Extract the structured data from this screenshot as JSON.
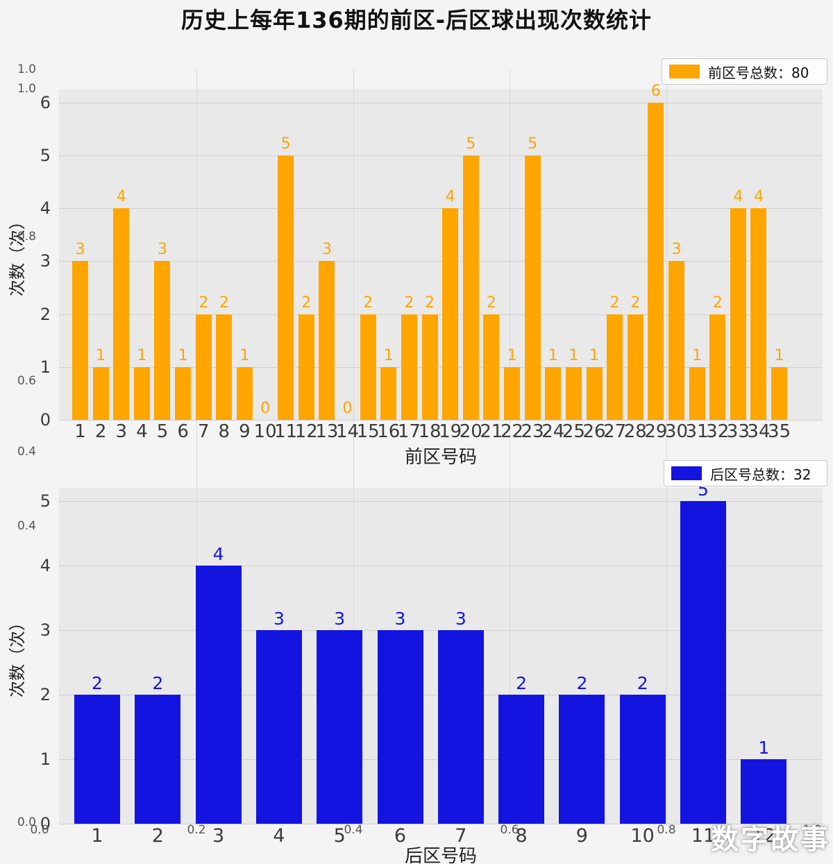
{
  "title": "历史上每年136期的前区-后区球出现次数统计",
  "watermark": "数字故事",
  "chart_data": [
    {
      "type": "bar",
      "name": "front-zone-counts",
      "legend": "前区号总数：80",
      "bar_color": "#FFA500",
      "categories": [
        1,
        2,
        3,
        4,
        5,
        6,
        7,
        8,
        9,
        10,
        11,
        12,
        13,
        14,
        15,
        16,
        17,
        18,
        19,
        20,
        21,
        22,
        23,
        24,
        25,
        26,
        27,
        28,
        29,
        30,
        31,
        32,
        33,
        34,
        35
      ],
      "values": [
        3,
        1,
        4,
        1,
        3,
        1,
        2,
        2,
        1,
        0,
        5,
        2,
        3,
        0,
        2,
        1,
        2,
        2,
        4,
        5,
        2,
        1,
        5,
        1,
        1,
        1,
        2,
        2,
        6,
        3,
        1,
        2,
        4,
        4,
        1
      ],
      "xlabel": "前区号码",
      "ylabel": "次数（次）",
      "ylim": [
        0,
        6
      ],
      "yticks": [
        0,
        1,
        2,
        3,
        4,
        5,
        6
      ],
      "grid": true,
      "legend_position": "top-right"
    },
    {
      "type": "bar",
      "name": "back-zone-counts",
      "legend": "后区号总数：32",
      "bar_color": "#1414E1",
      "categories": [
        1,
        2,
        3,
        4,
        5,
        6,
        7,
        8,
        9,
        10,
        11,
        12
      ],
      "values": [
        2,
        2,
        4,
        3,
        3,
        3,
        3,
        2,
        2,
        2,
        5,
        1
      ],
      "xlabel": "后区号码",
      "ylabel": "次数（次）",
      "ylim": [
        0,
        5
      ],
      "yticks": [
        0,
        1,
        2,
        3,
        4,
        5
      ],
      "grid": true,
      "legend_position": "top-right"
    }
  ],
  "background_axis": {
    "left_labels": [
      "1.0",
      "1.0",
      "0.8",
      "0.6",
      "0.4",
      "0.4",
      "0.0"
    ],
    "bottom_labels": [
      "0.0",
      "0.2",
      "0.4",
      "0.6",
      "0.8",
      "1.0"
    ]
  }
}
